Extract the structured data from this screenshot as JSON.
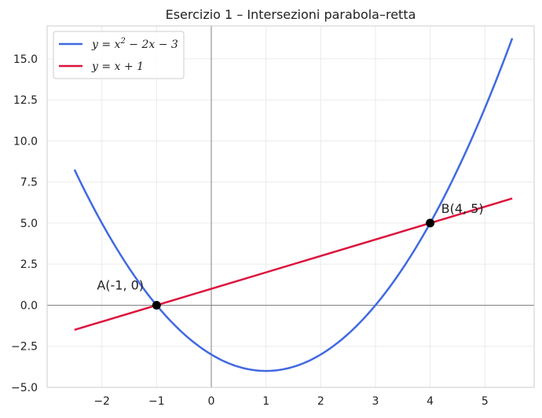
{
  "chart_data": {
    "type": "line",
    "title": "Esercizio 1 – Intersezioni parabola–retta",
    "xlabel": "",
    "ylabel": "",
    "xlim": [
      -3.0,
      5.9
    ],
    "ylim": [
      -5.0,
      17.0
    ],
    "x_ticks": [
      -2,
      -1,
      0,
      1,
      2,
      3,
      4,
      5
    ],
    "x_tick_labels": [
      "−2",
      "−1",
      "0",
      "1",
      "2",
      "3",
      "4",
      "5"
    ],
    "y_ticks": [
      -5.0,
      -2.5,
      0.0,
      2.5,
      5.0,
      7.5,
      10.0,
      12.5,
      15.0
    ],
    "y_tick_labels": [
      "−5.0",
      "−2.5",
      "0.0",
      "2.5",
      "5.0",
      "7.5",
      "10.0",
      "12.5",
      "15.0"
    ],
    "grid": true,
    "legend_position": "top-left",
    "series": [
      {
        "name": "y = x² − 2x − 3",
        "color": "#4169E1",
        "x": [
          -2.5,
          -2.0,
          -1.5,
          -1.0,
          -0.5,
          0.0,
          0.5,
          1.0,
          1.5,
          2.0,
          2.5,
          3.0,
          3.5,
          4.0,
          4.5,
          5.0,
          5.5
        ],
        "y": [
          8.25,
          5.0,
          2.25,
          0.0,
          -1.75,
          -3.0,
          -3.75,
          -4.0,
          -3.75,
          -3.0,
          -1.75,
          0.0,
          2.25,
          5.0,
          8.25,
          12.0,
          16.25
        ]
      },
      {
        "name": "y = x + 1",
        "color": "#DC143C",
        "x": [
          -2.5,
          5.5
        ],
        "y": [
          -1.5,
          6.5
        ]
      }
    ],
    "legend": [
      {
        "series": 0,
        "pre": "y = x",
        "sup": "2",
        "post": " − 2x − 3"
      },
      {
        "series": 1,
        "pre": "y = x + 1",
        "sup": "",
        "post": ""
      }
    ],
    "points": [
      {
        "x": -1,
        "y": 0,
        "label": "A(-1, 0)",
        "color": "#000000"
      },
      {
        "x": 4,
        "y": 5,
        "label": "B(4, 5)",
        "color": "#000000"
      }
    ]
  }
}
